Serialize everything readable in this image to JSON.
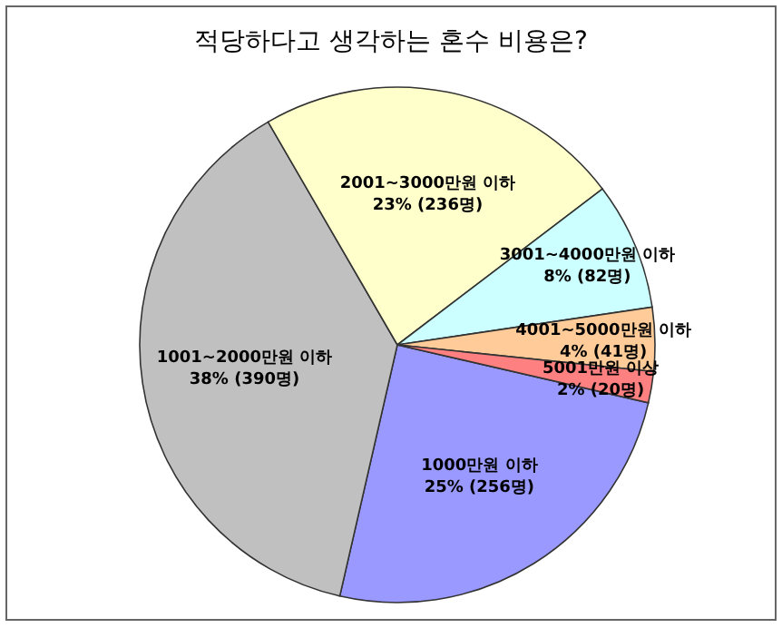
{
  "chart_data": {
    "type": "pie",
    "title": "적당하다고 생각하는 혼수 비용은?",
    "categories": [
      "1000만원 이하",
      "1001~2000만원 이하",
      "2001~3000만원 이하",
      "3001~4000만원 이하",
      "4001~5000만원 이하",
      "5001만원 이상"
    ],
    "values": [
      256,
      390,
      236,
      82,
      41,
      20
    ],
    "value_labels": [
      "25% (256명)",
      "38% (390명)",
      "23% (236명)",
      "8% (82명)",
      "4% (41명)",
      "2% (20명)"
    ],
    "colors": [
      "#9999ff",
      "#c0c0c0",
      "#ffffcc",
      "#ccffff",
      "#ffcc99",
      "#ff8080"
    ]
  }
}
